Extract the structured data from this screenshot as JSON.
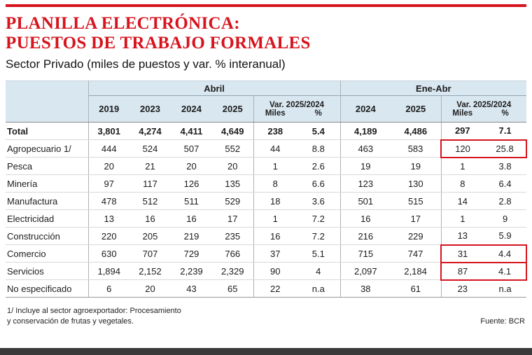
{
  "header": {
    "title_line1": "PLANILLA ELECTRÓNICA:",
    "title_line2": "PUESTOS DE TRABAJO FORMALES",
    "subtitle": "Sector Privado (miles de puestos y var. % interanual)"
  },
  "footer": {
    "footnote_line1": "1/ Incluye al sector agroexportador: Procesamiento",
    "footnote_line2": "y conservación de frutas y vegetales.",
    "source": "Fuente: BCR"
  },
  "colors": {
    "accent_red": "#d7141e",
    "header_blue": "#d9e7f0",
    "highlight_box_red": "#d7141e",
    "bottom_bar_gray": "#3a3a3a"
  },
  "chart_data": {
    "type": "table",
    "title": "PLANILLA ELECTRÓNICA: PUESTOS DE TRABAJO FORMALES",
    "subtitle": "Sector Privado (miles de puestos y var. % interanual)",
    "column_groups": [
      {
        "label": "Abril",
        "columns": [
          "2019",
          "2023",
          "2024",
          "2025"
        ]
      },
      {
        "label": "Var. 2025/2024",
        "columns": [
          "Miles",
          "%"
        ]
      },
      {
        "label": "Ene-Abr",
        "columns": [
          "2024",
          "2025"
        ]
      },
      {
        "label": "Var. 2025/2024",
        "columns": [
          "Miles",
          "%"
        ]
      }
    ],
    "rows": [
      {
        "label": "Total",
        "bold": true,
        "highlight": false,
        "values": [
          "3,801",
          "4,274",
          "4,411",
          "4,649",
          "238",
          "5.4",
          "4,189",
          "4,486",
          "297",
          "7.1"
        ]
      },
      {
        "label": "Agropecuario 1/",
        "bold": false,
        "highlight": true,
        "values": [
          "444",
          "524",
          "507",
          "552",
          "44",
          "8.8",
          "463",
          "583",
          "120",
          "25.8"
        ]
      },
      {
        "label": "Pesca",
        "bold": false,
        "highlight": false,
        "values": [
          "20",
          "21",
          "20",
          "20",
          "1",
          "2.6",
          "19",
          "19",
          "1",
          "3.8"
        ]
      },
      {
        "label": "Minería",
        "bold": false,
        "highlight": false,
        "values": [
          "97",
          "117",
          "126",
          "135",
          "8",
          "6.6",
          "123",
          "130",
          "8",
          "6.4"
        ]
      },
      {
        "label": "Manufactura",
        "bold": false,
        "highlight": false,
        "values": [
          "478",
          "512",
          "511",
          "529",
          "18",
          "3.6",
          "501",
          "515",
          "14",
          "2.8"
        ]
      },
      {
        "label": "Electricidad",
        "bold": false,
        "highlight": false,
        "values": [
          "13",
          "16",
          "16",
          "17",
          "1",
          "7.2",
          "16",
          "17",
          "1",
          "9"
        ]
      },
      {
        "label": "Construcción",
        "bold": false,
        "highlight": false,
        "values": [
          "220",
          "205",
          "219",
          "235",
          "16",
          "7.2",
          "216",
          "229",
          "13",
          "5.9"
        ]
      },
      {
        "label": "Comercio",
        "bold": false,
        "highlight": true,
        "values": [
          "630",
          "707",
          "729",
          "766",
          "37",
          "5.1",
          "715",
          "747",
          "31",
          "4.4"
        ]
      },
      {
        "label": "Servicios",
        "bold": false,
        "highlight": true,
        "values": [
          "1,894",
          "2,152",
          "2,239",
          "2,329",
          "90",
          "4",
          "2,097",
          "2,184",
          "87",
          "4.1"
        ]
      },
      {
        "label": "No especificado",
        "bold": false,
        "highlight": false,
        "values": [
          "6",
          "20",
          "43",
          "65",
          "22",
          "n.a",
          "38",
          "61",
          "23",
          "n.a"
        ]
      }
    ]
  }
}
